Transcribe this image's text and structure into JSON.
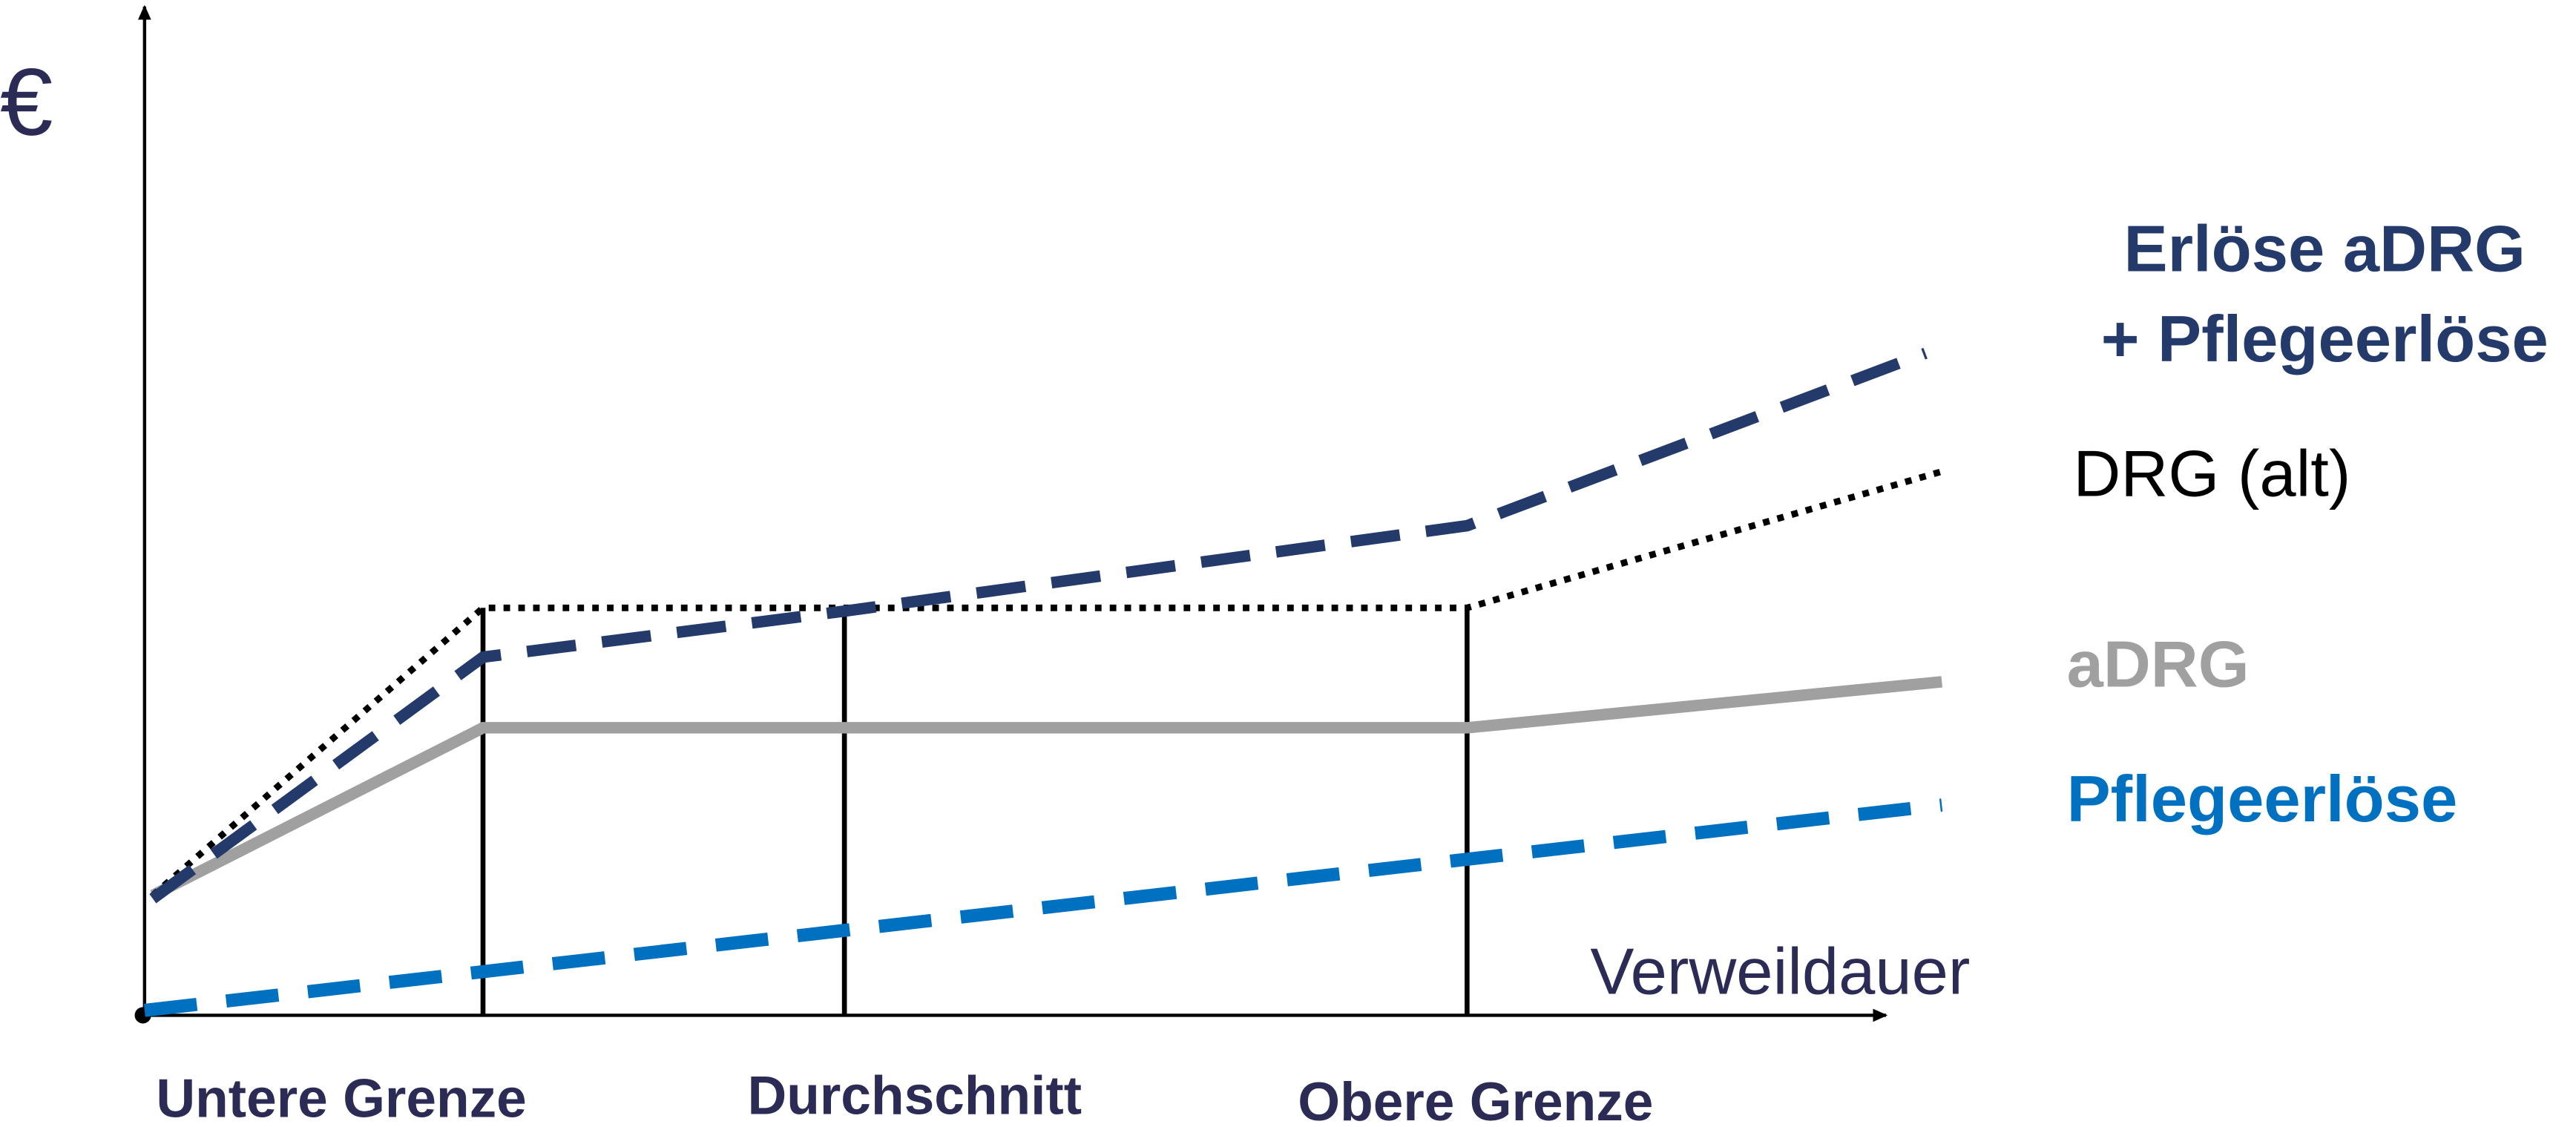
{
  "y_axis_label": "€",
  "x_axis_label": "Verweildauer",
  "x_labels": [
    "Untere Grenze",
    "Durchschnitt",
    "Obere Grenze"
  ],
  "legend": [
    {
      "lines": [
        "Erlöse aDRG",
        "+ Pflegeerlöse"
      ]
    },
    {
      "lines": [
        "DRG (alt)"
      ]
    },
    {
      "lines": [
        "aDRG"
      ]
    },
    {
      "lines": [
        "Pflegeerlöse"
      ]
    }
  ]
}
